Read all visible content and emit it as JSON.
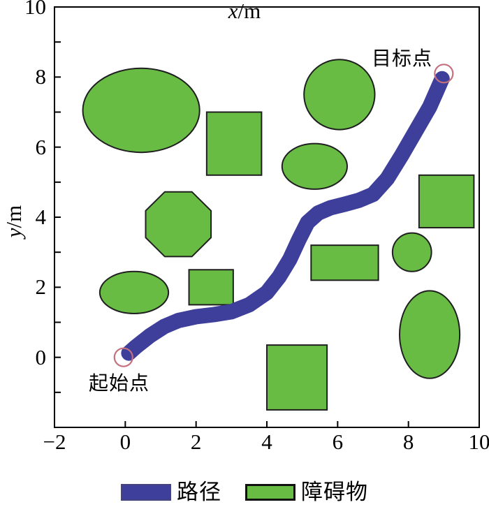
{
  "chart_data": {
    "type": "line",
    "description": "Robot path-planning result map: planned path from start point to goal point among obstacles",
    "xlabel": "x/m",
    "ylabel": "y/m",
    "xlabel_var": "x",
    "xlabel_unit": "/m",
    "ylabel_var": "y",
    "ylabel_unit": "/m",
    "xlim": [
      -2,
      10
    ],
    "ylim": [
      -2,
      10
    ],
    "xticks": [
      -2,
      0,
      2,
      4,
      6,
      8,
      10
    ],
    "xtick_labels": [
      "−2",
      "0",
      "2",
      "4",
      "6",
      "8",
      "10"
    ],
    "yticks": [
      0,
      2,
      4,
      6,
      8,
      10
    ],
    "ytick_labels": [
      "0",
      "2",
      "4",
      "6",
      "8",
      "10"
    ],
    "y_minor_tick_step": 1,
    "grid": false,
    "start": {
      "label": "起始点",
      "x": -0.05,
      "y": 0.0
    },
    "goal": {
      "label": "目标点",
      "x": 9.0,
      "y": 8.1
    },
    "path_points": [
      [
        0.1,
        0.12
      ],
      [
        0.3,
        0.3
      ],
      [
        0.7,
        0.62
      ],
      [
        1.1,
        0.88
      ],
      [
        1.5,
        1.05
      ],
      [
        2.0,
        1.16
      ],
      [
        2.5,
        1.22
      ],
      [
        3.0,
        1.3
      ],
      [
        3.5,
        1.5
      ],
      [
        4.0,
        1.85
      ],
      [
        4.35,
        2.3
      ],
      [
        4.65,
        2.8
      ],
      [
        4.9,
        3.35
      ],
      [
        5.15,
        3.85
      ],
      [
        5.45,
        4.12
      ],
      [
        5.8,
        4.27
      ],
      [
        6.2,
        4.37
      ],
      [
        6.6,
        4.48
      ],
      [
        7.0,
        4.65
      ],
      [
        7.4,
        5.1
      ],
      [
        7.8,
        5.75
      ],
      [
        8.2,
        6.45
      ],
      [
        8.6,
        7.15
      ],
      [
        8.95,
        7.95
      ]
    ],
    "obstacles": [
      {
        "shape": "ellipse",
        "cx": 0.45,
        "cy": 7.05,
        "rx": 1.65,
        "ry": 1.2
      },
      {
        "shape": "rect",
        "x": 2.3,
        "y": 5.2,
        "w": 1.55,
        "h": 1.8
      },
      {
        "shape": "circle",
        "cx": 6.05,
        "cy": 7.5,
        "r": 1.0
      },
      {
        "shape": "ellipse",
        "cx": 5.35,
        "cy": 5.45,
        "rx": 0.92,
        "ry": 0.65
      },
      {
        "shape": "octagon",
        "cx": 1.5,
        "cy": 3.8,
        "r": 1.0
      },
      {
        "shape": "rect",
        "x": 8.3,
        "y": 3.7,
        "w": 1.55,
        "h": 1.5
      },
      {
        "shape": "circle",
        "cx": 8.1,
        "cy": 3.0,
        "r": 0.55
      },
      {
        "shape": "rect",
        "x": 5.25,
        "y": 2.2,
        "w": 1.9,
        "h": 1.0
      },
      {
        "shape": "rect",
        "x": 1.8,
        "y": 1.5,
        "w": 1.25,
        "h": 1.0
      },
      {
        "shape": "ellipse",
        "cx": 0.25,
        "cy": 1.85,
        "rx": 0.97,
        "ry": 0.6
      },
      {
        "shape": "ellipse",
        "cx": 8.6,
        "cy": 0.65,
        "rx": 0.85,
        "ry": 1.25
      },
      {
        "shape": "rect",
        "x": 4.0,
        "y": -1.5,
        "w": 1.7,
        "h": 1.85
      }
    ],
    "legend": [
      {
        "label": "路径",
        "color": "#3e3f9b"
      },
      {
        "label": "障碍物",
        "color": "#68bc44"
      }
    ],
    "colors": {
      "path": "#3e3f9b",
      "obstacle_fill": "#68bc44",
      "obstacle_border": "#1f1f1f",
      "endpoint_ring": "#c5707e",
      "axis": "#000000",
      "background": "#ffffff"
    },
    "path_stroke_px": 22,
    "endpoint_ring_radius_px": 13
  }
}
